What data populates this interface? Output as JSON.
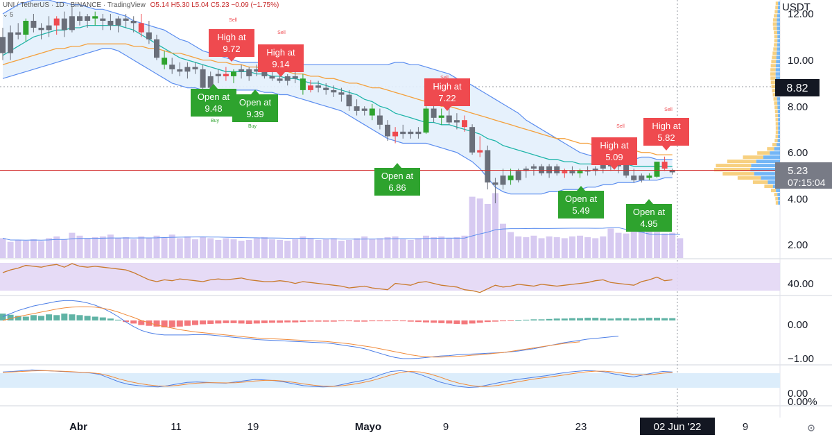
{
  "header": {
    "symbol": "UNI / TetherUS",
    "interval": "1D",
    "exchange": "BINANCE",
    "platform": "TradingView",
    "ohlc": "O5.14 H5.30 L5.04 C5.23 −0.09 (−1.75%)",
    "indicator_count": "5"
  },
  "axis": {
    "currency": "USDT",
    "price_ticks": [
      "12.00",
      "10.00",
      "8.00",
      "6.00",
      "4.00",
      "2.00"
    ],
    "rsi_tick": "40.00",
    "macd_ticks": [
      "0.00",
      "−1.00"
    ],
    "stoch_ticks": [
      "0.00",
      "0.00%"
    ],
    "date_ticks": [
      "Abr",
      "11",
      "19",
      "Mayo",
      "9",
      "23",
      "9"
    ],
    "current_date": "02 Jun '22"
  },
  "price_labels": {
    "crosshair_price": "8.82",
    "last_price": "5.23",
    "countdown": "07:15:04"
  },
  "annotations": [
    {
      "kind": "high",
      "line1": "High at",
      "line2": "9.72"
    },
    {
      "kind": "high",
      "line1": "High at",
      "line2": "9.14"
    },
    {
      "kind": "open",
      "line1": "Open at",
      "line2": "9.48"
    },
    {
      "kind": "open",
      "line1": "Open at",
      "line2": "9.39"
    },
    {
      "kind": "high",
      "line1": "High at",
      "line2": "7.22"
    },
    {
      "kind": "open",
      "line1": "Open at",
      "line2": "6.86"
    },
    {
      "kind": "high",
      "line1": "High at",
      "line2": "5.09"
    },
    {
      "kind": "high",
      "line1": "High at",
      "line2": "5.82"
    },
    {
      "kind": "open",
      "line1": "Open at",
      "line2": "5.49"
    },
    {
      "kind": "open",
      "line1": "Open at",
      "line2": "4.95"
    }
  ],
  "signals": {
    "sell": "Sell",
    "buy": "Buy"
  },
  "colors": {
    "up": "#2ea32e",
    "down": "#ef4a4f",
    "bar": "#6a6f7a",
    "bollinger": "#5b8def",
    "ma_teal": "#1fb5a9",
    "ma_orange": "#f4a03c",
    "last_line": "#d32f2f",
    "volume": "#c9b8ec",
    "rsi_bg": "#e3d7f5",
    "rsi_line": "#c97a2c",
    "hist_pos": "#2b9a87",
    "hist_neg": "#ef4a4f",
    "macd_line": "#4c7ee6",
    "signal_line": "#f08a3a",
    "stoch_bg": "#dcedfb",
    "label_dark": "#131722",
    "label_gray": "#787b86"
  },
  "chart_data": {
    "type": "candlestick",
    "ylim": [
      1.6,
      12.6
    ],
    "ohlc": [
      [
        11.0,
        11.4,
        10.0,
        10.3
      ],
      [
        10.3,
        11.5,
        10.0,
        11.2
      ],
      [
        11.2,
        11.6,
        10.9,
        11.1
      ],
      [
        11.1,
        11.8,
        10.8,
        11.7
      ],
      [
        11.7,
        12.0,
        11.2,
        11.4
      ],
      [
        11.4,
        11.6,
        10.9,
        11.3
      ],
      [
        11.3,
        11.9,
        11.0,
        11.5
      ],
      [
        11.5,
        11.9,
        11.1,
        11.8
      ],
      [
        11.8,
        12.1,
        11.0,
        11.3
      ],
      [
        11.3,
        12.3,
        11.2,
        11.9
      ],
      [
        11.9,
        12.1,
        11.5,
        11.7
      ],
      [
        11.7,
        12.0,
        11.4,
        11.9
      ],
      [
        11.9,
        12.1,
        11.5,
        11.8
      ],
      [
        11.8,
        12.0,
        11.3,
        11.7
      ],
      [
        11.7,
        12.0,
        11.3,
        11.5
      ],
      [
        11.5,
        11.9,
        11.2,
        11.8
      ],
      [
        11.8,
        12.0,
        11.4,
        11.7
      ],
      [
        11.7,
        11.9,
        11.2,
        11.6
      ],
      [
        11.6,
        12.0,
        11.0,
        11.2
      ],
      [
        11.2,
        11.7,
        10.7,
        10.9
      ],
      [
        10.9,
        11.1,
        10.0,
        10.1
      ],
      [
        10.1,
        10.4,
        9.6,
        9.8
      ],
      [
        9.8,
        10.1,
        9.4,
        9.6
      ],
      [
        9.6,
        9.9,
        9.3,
        9.5
      ],
      [
        9.5,
        9.9,
        9.2,
        9.7
      ],
      [
        9.7,
        9.9,
        9.4,
        9.6
      ],
      [
        9.6,
        9.8,
        8.6,
        8.8
      ],
      [
        8.8,
        9.5,
        8.6,
        9.3
      ],
      [
        9.3,
        9.6,
        9.0,
        9.4
      ],
      [
        9.4,
        9.7,
        9.1,
        9.3
      ],
      [
        9.3,
        9.6,
        9.0,
        9.5
      ],
      [
        9.5,
        9.8,
        9.2,
        9.6
      ],
      [
        9.3,
        9.7,
        9.1,
        9.6
      ],
      [
        9.6,
        9.8,
        9.3,
        9.5
      ],
      [
        9.5,
        9.72,
        9.2,
        9.3
      ],
      [
        9.3,
        9.5,
        9.1,
        9.2
      ],
      [
        9.2,
        9.4,
        9.0,
        9.1
      ],
      [
        9.1,
        9.39,
        8.9,
        9.3
      ],
      [
        9.3,
        9.5,
        9.0,
        9.2
      ],
      [
        9.2,
        9.4,
        8.5,
        8.7
      ],
      [
        8.7,
        9.14,
        8.6,
        8.9
      ],
      [
        8.9,
        9.1,
        8.6,
        8.8
      ],
      [
        8.8,
        9.0,
        8.5,
        8.7
      ],
      [
        8.7,
        8.9,
        8.4,
        8.6
      ],
      [
        8.6,
        8.8,
        8.2,
        8.5
      ],
      [
        8.5,
        8.7,
        7.8,
        8.0
      ],
      [
        8.0,
        8.3,
        7.6,
        7.8
      ],
      [
        7.8,
        8.0,
        7.6,
        7.9
      ],
      [
        7.9,
        8.1,
        7.4,
        7.6
      ],
      [
        7.6,
        7.9,
        7.0,
        7.2
      ],
      [
        7.2,
        7.4,
        6.5,
        6.7
      ],
      [
        6.7,
        7.1,
        6.4,
        6.9
      ],
      [
        6.9,
        7.2,
        6.6,
        6.8
      ],
      [
        6.8,
        7.0,
        6.6,
        6.9
      ],
      [
        6.9,
        7.1,
        6.6,
        6.8
      ],
      [
        6.86,
        8.0,
        6.8,
        7.9
      ],
      [
        7.9,
        8.1,
        7.3,
        7.5
      ],
      [
        7.5,
        7.9,
        7.2,
        7.6
      ],
      [
        7.6,
        8.0,
        7.2,
        7.3
      ],
      [
        7.3,
        7.7,
        7.0,
        7.4
      ],
      [
        7.4,
        7.6,
        6.9,
        7.1
      ],
      [
        7.1,
        7.22,
        5.9,
        6.0
      ],
      [
        6.0,
        6.7,
        5.8,
        6.1
      ],
      [
        6.1,
        6.3,
        4.4,
        4.7
      ],
      [
        4.7,
        4.9,
        3.8,
        4.6
      ],
      [
        4.6,
        5.3,
        4.4,
        5.0
      ],
      [
        5.0,
        5.3,
        4.6,
        4.8
      ],
      [
        4.8,
        5.3,
        4.7,
        5.2
      ],
      [
        5.2,
        5.4,
        4.9,
        5.3
      ],
      [
        5.3,
        5.5,
        5.0,
        5.4
      ],
      [
        5.4,
        5.5,
        5.0,
        5.1
      ],
      [
        5.1,
        5.5,
        4.9,
        5.4
      ],
      [
        5.4,
        5.5,
        5.0,
        5.1
      ],
      [
        5.1,
        5.3,
        4.9,
        5.2
      ],
      [
        5.2,
        5.4,
        5.0,
        5.1
      ],
      [
        5.1,
        5.3,
        4.9,
        5.2
      ],
      [
        5.2,
        5.4,
        5.0,
        5.2
      ],
      [
        5.2,
        5.4,
        5.0,
        5.3
      ],
      [
        5.3,
        5.6,
        5.1,
        5.5
      ],
      [
        5.49,
        5.8,
        5.2,
        5.4
      ],
      [
        5.4,
        5.6,
        5.1,
        5.5
      ],
      [
        5.5,
        5.7,
        4.9,
        5.0
      ],
      [
        5.0,
        5.3,
        4.7,
        4.8
      ],
      [
        4.8,
        5.09,
        4.7,
        5.0
      ],
      [
        5.0,
        5.1,
        4.8,
        4.9
      ],
      [
        4.95,
        5.6,
        4.9,
        5.6
      ],
      [
        5.6,
        5.82,
        5.2,
        5.3
      ],
      [
        5.14,
        5.3,
        5.04,
        5.23
      ]
    ],
    "sma_fast": [
      10.2,
      10.4,
      10.6,
      10.8,
      11.0,
      11.1,
      11.2,
      11.3,
      11.3,
      11.4,
      11.4,
      11.5,
      11.5,
      11.5,
      11.5,
      11.5,
      11.4,
      11.3,
      11.1,
      10.9,
      10.7,
      10.5,
      10.3,
      10.1,
      10.0,
      9.9,
      9.8,
      9.7,
      9.6,
      9.5,
      9.5,
      9.5,
      9.5,
      9.4,
      9.4,
      9.3,
      9.3,
      9.2,
      9.2,
      9.1,
      9.0,
      9.0,
      8.9,
      8.8,
      8.7,
      8.6,
      8.5,
      8.3,
      8.2,
      8.0,
      7.9,
      7.7,
      7.6,
      7.5,
      7.4,
      7.3,
      7.3,
      7.2,
      7.2,
      7.1,
      7.0,
      6.9,
      6.8,
      6.6,
      6.5,
      6.3,
      6.2,
      6.1,
      6.0,
      5.9,
      5.8,
      5.7,
      5.7,
      5.6,
      5.6,
      5.5,
      5.5,
      5.5,
      5.5,
      5.5,
      5.5,
      5.5,
      5.4,
      5.4,
      5.4,
      5.4,
      5.4,
      5.4
    ],
    "sma_slow": [
      9.8,
      9.9,
      10.0,
      10.1,
      10.2,
      10.3,
      10.4,
      10.5,
      10.5,
      10.6,
      10.6,
      10.7,
      10.7,
      10.7,
      10.7,
      10.7,
      10.7,
      10.6,
      10.6,
      10.5,
      10.5,
      10.4,
      10.3,
      10.3,
      10.2,
      10.1,
      10.0,
      10.0,
      9.9,
      9.9,
      9.8,
      9.8,
      9.7,
      9.7,
      9.6,
      9.6,
      9.5,
      9.5,
      9.4,
      9.4,
      9.3,
      9.3,
      9.2,
      9.2,
      9.1,
      9.0,
      9.0,
      8.9,
      8.8,
      8.8,
      8.7,
      8.6,
      8.5,
      8.4,
      8.3,
      8.2,
      8.1,
      8.0,
      8.0,
      7.9,
      7.8,
      7.7,
      7.6,
      7.5,
      7.4,
      7.3,
      7.2,
      7.1,
      7.0,
      6.9,
      6.8,
      6.7,
      6.6,
      6.6,
      6.5,
      6.4,
      6.4,
      6.3,
      6.3,
      6.2,
      6.2,
      6.1,
      6.1,
      6.0,
      6.0,
      5.9,
      5.9,
      5.9
    ],
    "bb_upper": [
      12.0,
      12.2,
      12.4,
      12.5,
      12.6,
      12.6,
      12.6,
      12.5,
      12.5,
      12.4,
      12.4,
      12.3,
      12.2,
      12.2,
      12.1,
      12.0,
      11.9,
      11.7,
      11.6,
      11.5,
      11.4,
      11.3,
      11.1,
      10.9,
      10.8,
      10.6,
      10.4,
      10.3,
      10.2,
      10.1,
      10.0,
      9.9,
      9.9,
      9.9,
      9.9,
      9.9,
      9.8,
      9.8,
      9.8,
      9.8,
      9.8,
      9.8,
      9.8,
      9.8,
      9.8,
      9.8,
      9.8,
      9.8,
      9.8,
      9.8,
      9.8,
      9.9,
      9.9,
      9.8,
      9.8,
      9.7,
      9.6,
      9.5,
      9.4,
      9.2,
      9.1,
      8.9,
      8.7,
      8.5,
      8.3,
      8.1,
      7.9,
      7.7,
      7.4,
      7.2,
      7.0,
      6.8,
      6.6,
      6.4,
      6.2,
      6.0,
      5.9,
      5.8,
      5.7,
      5.7,
      5.7,
      5.7,
      5.7,
      5.8,
      5.8,
      5.7,
      5.7,
      5.7
    ],
    "bb_lower": [
      9.2,
      9.3,
      9.4,
      9.5,
      9.6,
      9.7,
      9.8,
      9.9,
      10.0,
      10.1,
      10.2,
      10.3,
      10.4,
      10.5,
      10.5,
      10.4,
      10.2,
      10.0,
      9.8,
      9.6,
      9.4,
      9.2,
      9.0,
      8.9,
      8.8,
      8.8,
      8.7,
      8.7,
      8.7,
      8.7,
      8.7,
      8.7,
      8.7,
      8.7,
      8.6,
      8.6,
      8.5,
      8.5,
      8.4,
      8.3,
      8.2,
      8.1,
      8.0,
      7.9,
      7.8,
      7.6,
      7.4,
      7.2,
      7.0,
      6.8,
      6.6,
      6.5,
      6.4,
      6.4,
      6.4,
      6.4,
      6.3,
      6.2,
      6.1,
      6.0,
      5.8,
      5.6,
      5.3,
      4.9,
      4.5,
      4.3,
      4.2,
      4.2,
      4.2,
      4.2,
      4.2,
      4.3,
      4.3,
      4.4,
      4.4,
      4.4,
      4.5,
      4.5,
      4.6,
      4.6,
      4.7,
      4.7,
      4.7,
      4.8,
      4.8,
      4.8,
      4.9,
      4.9
    ],
    "volume": [
      55,
      45,
      50,
      48,
      52,
      47,
      55,
      60,
      52,
      70,
      62,
      55,
      58,
      60,
      65,
      55,
      58,
      52,
      60,
      55,
      62,
      58,
      65,
      55,
      60,
      52,
      58,
      55,
      50,
      55,
      52,
      48,
      50,
      55,
      58,
      52,
      50,
      48,
      52,
      60,
      55,
      50,
      52,
      55,
      48,
      50,
      55,
      60,
      52,
      55,
      58,
      60,
      52,
      50,
      55,
      62,
      58,
      60,
      55,
      58,
      62,
      170,
      165,
      150,
      180,
      95,
      72,
      60,
      58,
      62,
      55,
      60,
      58,
      55,
      60,
      62,
      58,
      55,
      60,
      82,
      70,
      68,
      75,
      85,
      80,
      72,
      68,
      70,
      55
    ],
    "rsi": [
      52,
      55,
      57,
      60,
      59,
      58,
      60,
      61,
      58,
      62,
      59,
      58,
      59,
      58,
      57,
      56,
      55,
      52,
      48,
      44,
      42,
      44,
      43,
      45,
      44,
      43,
      42,
      44,
      45,
      44,
      45,
      46,
      44,
      43,
      42,
      42,
      43,
      42,
      40,
      42,
      41,
      40,
      39,
      38,
      37,
      35,
      36,
      37,
      35,
      34,
      33,
      40,
      39,
      38,
      41,
      42,
      40,
      38,
      37,
      36,
      33,
      32,
      30,
      34,
      38,
      36,
      37,
      39,
      38,
      37,
      39,
      38,
      37,
      38,
      39,
      40,
      41,
      43,
      44,
      41,
      40,
      39,
      38,
      42,
      44,
      47,
      43,
      44
    ],
    "macd_hist": [
      0.18,
      0.15,
      0.12,
      0.1,
      0.14,
      0.12,
      0.16,
      0.14,
      0.18,
      0.16,
      0.14,
      0.12,
      0.1,
      0.08,
      0.05,
      0.02,
      -0.04,
      -0.08,
      -0.12,
      -0.14,
      -0.16,
      -0.18,
      -0.18,
      -0.16,
      -0.14,
      -0.12,
      -0.1,
      -0.09,
      -0.08,
      -0.07,
      -0.07,
      -0.08,
      -0.09,
      -0.08,
      -0.07,
      -0.06,
      -0.06,
      -0.05,
      -0.05,
      -0.04,
      -0.03,
      -0.03,
      -0.03,
      -0.03,
      -0.02,
      -0.02,
      -0.03,
      -0.03,
      -0.02,
      -0.02,
      -0.02,
      -0.01,
      -0.02,
      -0.03,
      -0.04,
      -0.05,
      -0.06,
      -0.07,
      -0.08,
      -0.09,
      -0.1,
      -0.08,
      -0.06,
      -0.04,
      -0.03,
      -0.02,
      -0.01,
      0.0,
      0.02,
      0.03,
      0.03,
      0.04,
      0.05,
      0.05,
      0.06,
      0.06,
      0.07,
      0.07,
      0.06,
      0.05,
      0.06,
      0.06,
      0.05,
      0.06,
      0.07,
      0.07,
      0.06,
      0.06
    ],
    "macd_line": [
      0.1,
      0.18,
      0.26,
      0.32,
      0.38,
      0.42,
      0.46,
      0.5,
      0.52,
      0.52,
      0.5,
      0.46,
      0.4,
      0.32,
      0.22,
      0.1,
      -0.04,
      -0.16,
      -0.26,
      -0.32,
      -0.36,
      -0.38,
      -0.38,
      -0.38,
      -0.38,
      -0.37,
      -0.37,
      -0.38,
      -0.4,
      -0.42,
      -0.44,
      -0.46,
      -0.48,
      -0.5,
      -0.51,
      -0.52,
      -0.53,
      -0.54,
      -0.55,
      -0.56,
      -0.57,
      -0.58,
      -0.59,
      -0.61,
      -0.64,
      -0.67,
      -0.7,
      -0.74,
      -0.8,
      -0.86,
      -0.92,
      -0.97,
      -1.0,
      -1.0,
      -0.99,
      -0.97,
      -0.95,
      -0.93,
      -0.92,
      -0.9,
      -0.89,
      -0.88,
      -0.87,
      -0.86,
      -0.85,
      -0.84,
      -0.82,
      -0.8,
      -0.77,
      -0.74,
      -0.7,
      -0.66,
      -0.62,
      -0.58,
      -0.55,
      -0.52,
      -0.49,
      -0.47,
      -0.45,
      -0.43,
      -0.41
    ],
    "macd_signal": [
      0.0,
      0.05,
      0.1,
      0.14,
      0.18,
      0.22,
      0.26,
      0.3,
      0.33,
      0.35,
      0.36,
      0.36,
      0.35,
      0.32,
      0.28,
      0.22,
      0.15,
      0.08,
      0.0,
      -0.06,
      -0.12,
      -0.16,
      -0.2,
      -0.24,
      -0.27,
      -0.3,
      -0.32,
      -0.34,
      -0.36,
      -0.38,
      -0.4,
      -0.42,
      -0.44,
      -0.46,
      -0.47,
      -0.48,
      -0.49,
      -0.5,
      -0.51,
      -0.52,
      -0.53,
      -0.54,
      -0.55,
      -0.57,
      -0.59,
      -0.61,
      -0.64,
      -0.67,
      -0.7,
      -0.74,
      -0.78,
      -0.82,
      -0.86,
      -0.9,
      -0.93,
      -0.95,
      -0.96,
      -0.96,
      -0.95,
      -0.94,
      -0.93,
      -0.91,
      -0.9,
      -0.88,
      -0.86,
      -0.84,
      -0.81,
      -0.78,
      -0.75,
      -0.72,
      -0.69,
      -0.66,
      -0.63,
      -0.6,
      -0.58,
      -0.56
    ],
    "stoch_k": [
      80,
      82,
      85,
      88,
      86,
      84,
      82,
      80,
      78,
      76,
      70,
      55,
      40,
      30,
      25,
      22,
      20,
      25,
      32,
      38,
      40,
      38,
      36,
      35,
      40,
      45,
      50,
      48,
      45,
      40,
      32,
      25,
      22,
      20,
      22,
      30,
      38,
      45,
      55,
      70,
      82,
      85,
      80,
      70,
      55,
      40,
      30,
      22,
      18,
      20,
      28,
      36,
      44,
      50,
      55,
      60,
      65,
      72,
      78,
      82,
      85,
      84,
      80,
      72,
      65,
      60,
      68,
      76,
      82,
      80
    ],
    "stoch_d": [
      78,
      80,
      82,
      84,
      85,
      84,
      83,
      81,
      79,
      77,
      73,
      64,
      52,
      42,
      34,
      28,
      24,
      23,
      26,
      31,
      35,
      37,
      37,
      36,
      37,
      40,
      44,
      46,
      46,
      43,
      38,
      32,
      27,
      23,
      22,
      25,
      30,
      37,
      45,
      56,
      68,
      78,
      82,
      80,
      72,
      60,
      46,
      35,
      27,
      22,
      22,
      26,
      33,
      40,
      47,
      53,
      58,
      63,
      69,
      75,
      80,
      83,
      83,
      80,
      75,
      70,
      68,
      70,
      75,
      78
    ]
  }
}
